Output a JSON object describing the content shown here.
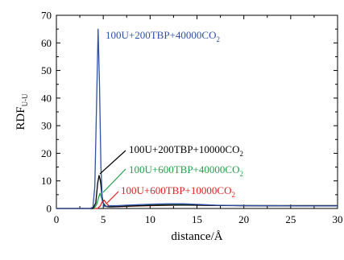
{
  "chart_data": {
    "type": "line",
    "xlabel": "distance/Å",
    "ylabel": "RDF",
    "ylabel_sub": "U-U",
    "xlim": [
      0,
      30
    ],
    "ylim": [
      0,
      70
    ],
    "xticks": [
      0,
      5,
      10,
      15,
      20,
      25,
      30
    ],
    "yticks": [
      0,
      10,
      20,
      30,
      40,
      50,
      60,
      70
    ],
    "x_tick_labels": [
      "0",
      "5",
      "10",
      "15",
      "20",
      "25",
      "30"
    ],
    "y_tick_labels": [
      "0",
      "10",
      "20",
      "30",
      "40",
      "50",
      "60",
      "70"
    ],
    "grid": false,
    "series": [
      {
        "color": "#3050a8",
        "label_main": "100U+200TBP+40000CO",
        "label_sub": "2",
        "x": [
          0,
          3.6,
          3.9,
          4.1,
          4.3,
          4.45,
          4.6,
          4.75,
          4.9,
          5.1,
          5.4,
          5.8,
          6.5,
          7.5,
          9.0,
          10.5,
          12.0,
          13.5,
          15.0,
          17.0,
          20.0,
          23.0,
          26.0,
          30.0
        ],
        "y": [
          0,
          0,
          0.5,
          8,
          40,
          65,
          45,
          15,
          3,
          0.8,
          0.8,
          1.0,
          1.0,
          1.2,
          1.4,
          1.6,
          1.7,
          1.7,
          1.5,
          1.2,
          1.0,
          1.0,
          0.9,
          0.9
        ]
      },
      {
        "color": "#000000",
        "label_main": "100U+200TBP+10000CO",
        "label_sub": "2",
        "x": [
          0,
          3.9,
          4.2,
          4.4,
          4.55,
          4.7,
          4.85,
          5.0,
          5.2,
          5.6,
          6.5,
          8.0,
          10.0,
          12.0,
          14.0,
          17.0,
          20.0,
          25.0,
          30.0
        ],
        "y": [
          0,
          0,
          2,
          9,
          12,
          10,
          5,
          2,
          0.8,
          0.6,
          0.7,
          0.9,
          1.1,
          1.2,
          1.2,
          1.1,
          1.0,
          1.0,
          1.0
        ]
      },
      {
        "color": "#22a046",
        "label_main": "100U+600TBP+40000CO",
        "label_sub": "2",
        "x": [
          0,
          4.0,
          4.3,
          4.5,
          4.65,
          4.8,
          5.0,
          5.3,
          5.8,
          7.0,
          9.0,
          11.0,
          13.0,
          15.0,
          18.0,
          22.0,
          26.0,
          30.0
        ],
        "y": [
          0,
          0,
          1.5,
          4,
          5.5,
          4,
          2,
          0.8,
          0.6,
          0.8,
          1.0,
          1.3,
          1.4,
          1.3,
          1.1,
          1.0,
          1.0,
          1.0
        ]
      },
      {
        "color": "#e02020",
        "label_main": "100U+600TBP+10000CO",
        "label_sub": "2",
        "x": [
          0,
          4.4,
          4.7,
          4.9,
          5.1,
          5.3,
          5.6,
          6.0,
          7.0,
          9.0,
          11.0,
          13.0,
          15.0,
          18.0,
          22.0,
          26.0,
          30.0
        ],
        "y": [
          0,
          0,
          1,
          2.5,
          3,
          2,
          1,
          0.6,
          0.7,
          0.9,
          1.1,
          1.2,
          1.2,
          1.1,
          1.0,
          1.0,
          1.0
        ]
      }
    ]
  }
}
